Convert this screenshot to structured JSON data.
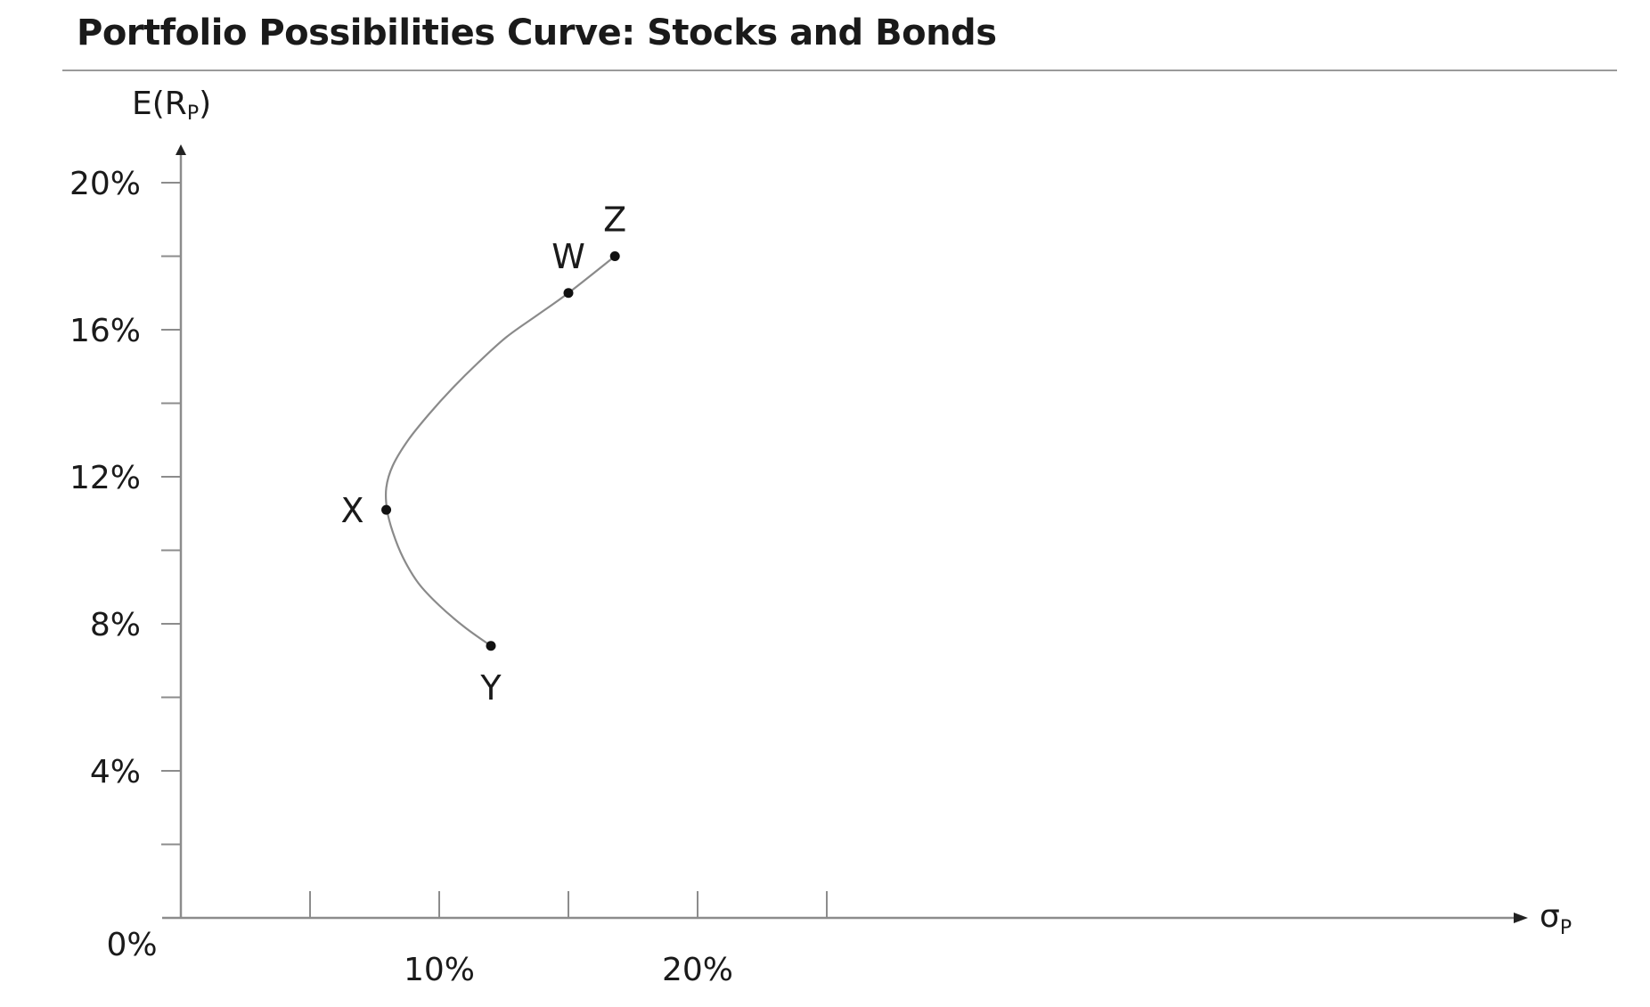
{
  "chart_data": {
    "type": "line",
    "title": "Portfolio Possibilities Curve: Stocks and Bonds",
    "ylabel": "E(R",
    "ylabel_sub": "P",
    "ylabel_close": ")",
    "xlabel": "σ",
    "xlabel_sub": "P",
    "xlim": [
      0,
      27.5
    ],
    "ylim": [
      0,
      21.5
    ],
    "x_ticks": [
      0,
      5,
      10,
      15,
      20,
      25
    ],
    "x_tick_labels": [
      {
        "x": 0,
        "label": "0%"
      },
      {
        "x": 10,
        "label": "10%"
      },
      {
        "x": 20,
        "label": "20%"
      }
    ],
    "y_ticks": [
      2,
      4,
      6,
      8,
      10,
      12,
      14,
      16,
      18,
      20
    ],
    "y_tick_labels": [
      {
        "y": 4,
        "label": "4%"
      },
      {
        "y": 8,
        "label": "8%"
      },
      {
        "y": 12,
        "label": "12%"
      },
      {
        "y": 16,
        "label": "16%"
      },
      {
        "y": 20,
        "label": "20%"
      }
    ],
    "curve_color": "#8a8a8a",
    "series": [
      {
        "x": [
          12.0,
          11.0,
          10.0,
          9.2,
          8.6,
          8.2,
          7.98,
          7.95,
          8.2,
          8.8,
          9.6,
          10.5,
          11.5,
          12.6,
          13.8,
          15.0,
          16.8
        ],
        "y": [
          7.4,
          7.9,
          8.5,
          9.1,
          9.8,
          10.5,
          11.1,
          11.7,
          12.3,
          13.0,
          13.7,
          14.4,
          15.1,
          15.8,
          16.4,
          17.0,
          18.0
        ]
      }
    ],
    "points": [
      {
        "label": "Y",
        "x": 12.0,
        "y": 7.4,
        "label_pos": "below"
      },
      {
        "label": "X",
        "x": 7.95,
        "y": 11.1,
        "label_pos": "left"
      },
      {
        "label": "W",
        "x": 15.0,
        "y": 17.0,
        "label_pos": "above"
      },
      {
        "label": "Z",
        "x": 16.8,
        "y": 18.0,
        "label_pos": "above"
      }
    ]
  }
}
